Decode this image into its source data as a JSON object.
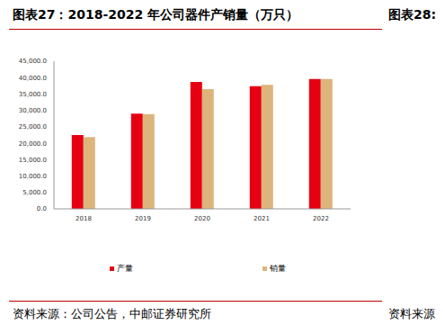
{
  "chart_data": {
    "type": "bar",
    "title": "图表27：2018-2022 年公司器件产销量（万只）",
    "source": "资料来源：公司公告，中邮证券研究所",
    "categories": [
      "2018",
      "2019",
      "2020",
      "2021",
      "2022"
    ],
    "series": [
      {
        "name": "产量",
        "color": "#e60012",
        "values": [
          22500,
          29000,
          38700,
          37400,
          39600
        ]
      },
      {
        "name": "销量",
        "color": "#dcb47c",
        "values": [
          21900,
          28900,
          36500,
          37800,
          39600
        ]
      }
    ],
    "ylim": [
      0,
      45000
    ],
    "yticks": [
      {
        "value": 0,
        "label": "0.0"
      },
      {
        "value": 5000,
        "label": "5,000.0"
      },
      {
        "value": 10000,
        "label": "10,000.0"
      },
      {
        "value": 15000,
        "label": "15,000.0"
      },
      {
        "value": 20000,
        "label": "20,000.0"
      },
      {
        "value": 25000,
        "label": "25,000.0"
      },
      {
        "value": 30000,
        "label": "30,000.0"
      },
      {
        "value": 35000,
        "label": "35,000.0"
      },
      {
        "value": 40000,
        "label": "40,000.0"
      },
      {
        "value": 45000,
        "label": "45,000.0"
      }
    ],
    "grid": false,
    "legend": "bottom"
  },
  "page": {
    "side_title": "图表28:",
    "side_source": "资料来源"
  }
}
